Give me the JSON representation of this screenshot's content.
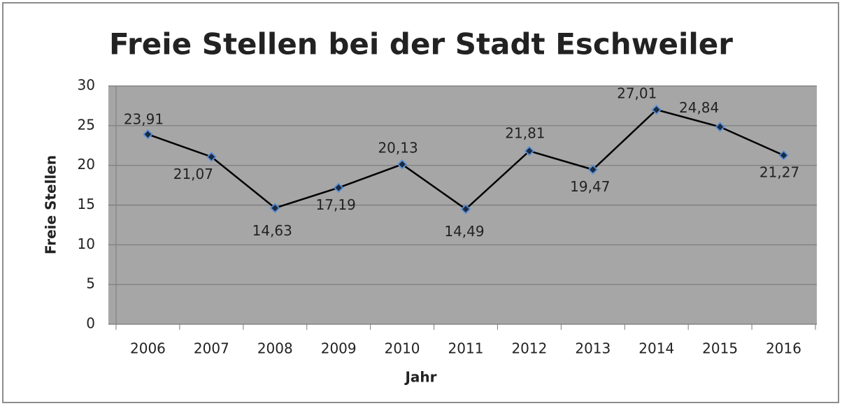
{
  "chart_data": {
    "type": "line",
    "title": "Freie Stellen bei der Stadt Eschweiler",
    "xlabel": "Jahr",
    "ylabel": "Freie Stellen",
    "categories": [
      "2006",
      "2007",
      "2008",
      "2009",
      "2010",
      "2011",
      "2012",
      "2013",
      "2014",
      "2015",
      "2016"
    ],
    "series": [
      {
        "name": "Freie Stellen",
        "color": "#000000",
        "values": [
          23.91,
          21.07,
          14.63,
          17.19,
          20.13,
          14.49,
          21.81,
          19.47,
          27.01,
          24.84,
          21.27
        ],
        "value_labels": [
          "23,91",
          "21,07",
          "14,63",
          "17,19",
          "20,13",
          "14,49",
          "21,81",
          "19,47",
          "27,01",
          "24,84",
          "21,27"
        ]
      }
    ],
    "ylim": [
      0,
      30
    ],
    "yticks": [
      0,
      5,
      10,
      15,
      20,
      25,
      30
    ],
    "grid": true
  }
}
